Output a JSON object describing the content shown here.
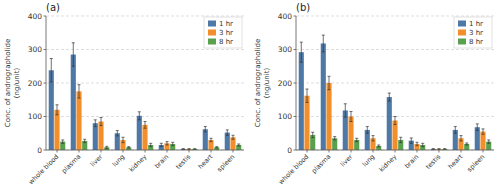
{
  "chart_data": [
    {
      "type": "bar",
      "title": "(a)",
      "categories": [
        "whole blood",
        "plasma",
        "liver",
        "lung",
        "kidney",
        "brain",
        "testis",
        "heart",
        "spleen"
      ],
      "series": [
        {
          "name": "1 hr",
          "values": [
            238,
            285,
            80,
            50,
            102,
            15,
            3,
            62,
            52
          ],
          "errors": [
            35,
            35,
            10,
            8,
            12,
            5,
            1,
            8,
            8
          ]
        },
        {
          "name": "3 hr",
          "values": [
            120,
            175,
            85,
            30,
            75,
            20,
            3,
            30,
            38
          ],
          "errors": [
            15,
            20,
            12,
            8,
            10,
            5,
            1,
            5,
            6
          ]
        },
        {
          "name": "8 hr",
          "values": [
            25,
            27,
            8,
            8,
            15,
            18,
            3,
            8,
            15
          ],
          "errors": [
            5,
            5,
            3,
            2,
            5,
            5,
            1,
            2,
            3
          ]
        }
      ],
      "y_label": "Conc. of andrographolide\n(ng/unit)",
      "ylim": [
        0,
        400
      ],
      "yticks": [
        0,
        100,
        200,
        300,
        400
      ],
      "grid": true,
      "legend": "upper right"
    },
    {
      "type": "bar",
      "title": "(b)",
      "categories": [
        "whole blood",
        "plasma",
        "liver",
        "lung",
        "kidney",
        "brain",
        "testis",
        "heart",
        "spleen"
      ],
      "series": [
        {
          "name": "1 hr",
          "values": [
            292,
            318,
            118,
            60,
            158,
            28,
            3,
            60,
            68
          ],
          "errors": [
            30,
            25,
            20,
            10,
            12,
            8,
            1,
            10,
            10
          ]
        },
        {
          "name": "3 hr",
          "values": [
            162,
            200,
            100,
            35,
            88,
            18,
            3,
            35,
            55
          ],
          "errors": [
            20,
            20,
            15,
            8,
            12,
            5,
            1,
            8,
            8
          ]
        },
        {
          "name": "8 hr",
          "values": [
            45,
            35,
            30,
            12,
            30,
            15,
            3,
            18,
            25
          ],
          "errors": [
            8,
            5,
            5,
            3,
            8,
            5,
            1,
            3,
            5
          ]
        }
      ],
      "y_label": "Conc. of andrographolide\n(ng/unit)",
      "ylim": [
        0,
        400
      ],
      "yticks": [
        0,
        100,
        200,
        300,
        400
      ],
      "grid": true,
      "legend": "upper right"
    }
  ]
}
